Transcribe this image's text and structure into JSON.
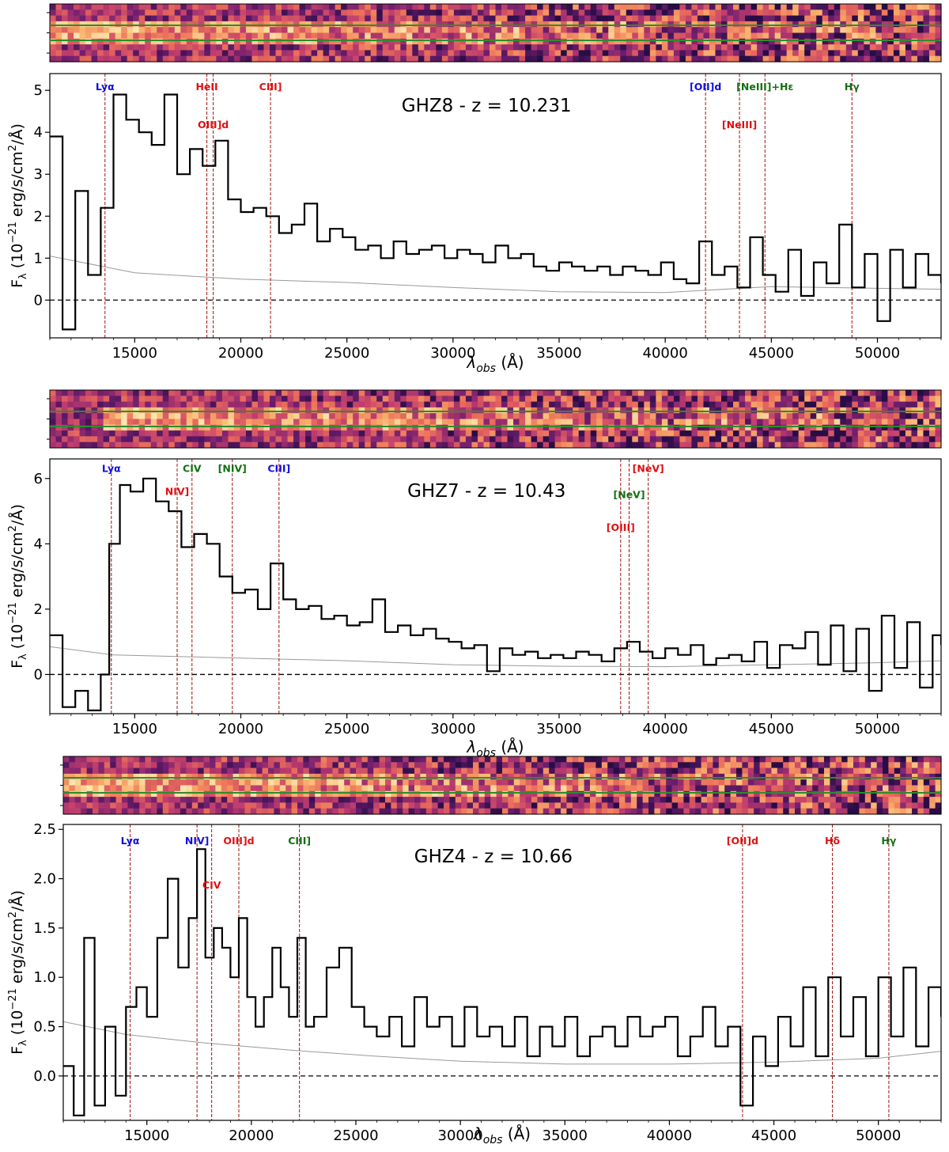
{
  "chart_data": [
    {
      "type": "line",
      "title": "GHZ8 - z = 10.231",
      "xlabel_symbol": "λ",
      "xlabel_sub": "obs",
      "xlabel_unit": " (Å)",
      "ylabel_prefix": "F",
      "ylabel_sub": "λ",
      "ylabel_mid": " (10",
      "ylabel_exp1": "−21",
      "ylabel_mid2": " erg/s/cm",
      "ylabel_exp2": "2",
      "ylabel_end": "/Å)",
      "xlim": [
        11000,
        53000
      ],
      "ylim": [
        -0.9,
        5.4
      ],
      "x_ticks": [
        15000,
        20000,
        25000,
        30000,
        35000,
        40000,
        45000,
        50000
      ],
      "x_tick_labels": [
        "15000",
        "20000",
        "25000",
        "30000",
        "35000",
        "40000",
        "45000",
        "50000"
      ],
      "y_ticks": [
        0,
        1,
        2,
        3,
        4,
        5
      ],
      "y_tick_labels": [
        "0",
        "1",
        "2",
        "3",
        "4",
        "5"
      ],
      "zero_line": 0,
      "flux": {
        "x": [
          11000,
          11600,
          12200,
          12800,
          13400,
          14000,
          14600,
          15200,
          15800,
          16400,
          17000,
          17600,
          18200,
          18800,
          19400,
          20000,
          20600,
          21200,
          21800,
          22400,
          23000,
          23600,
          24200,
          24800,
          25400,
          26000,
          26600,
          27200,
          27800,
          28400,
          29000,
          29600,
          30200,
          30800,
          31400,
          32000,
          32600,
          33200,
          33800,
          34400,
          35000,
          35600,
          36200,
          36800,
          37400,
          38000,
          38600,
          39200,
          39800,
          40400,
          41000,
          41600,
          42200,
          42800,
          43400,
          44000,
          44600,
          45200,
          45800,
          46400,
          47000,
          47600,
          48200,
          48800,
          49400,
          50000,
          50600,
          51200,
          51800,
          52400,
          53000
        ],
        "y": [
          3.9,
          -0.7,
          2.6,
          0.6,
          2.2,
          4.9,
          4.3,
          4.0,
          3.7,
          4.9,
          3.0,
          3.6,
          3.2,
          3.8,
          2.4,
          2.1,
          2.2,
          2.0,
          1.6,
          1.8,
          2.3,
          1.4,
          1.7,
          1.5,
          1.2,
          1.3,
          1.0,
          1.4,
          1.1,
          1.2,
          1.3,
          1.0,
          1.2,
          1.1,
          0.9,
          1.3,
          1.0,
          1.1,
          0.8,
          0.7,
          0.9,
          0.8,
          0.7,
          0.8,
          0.6,
          0.8,
          0.7,
          0.6,
          0.9,
          0.5,
          0.4,
          1.4,
          0.6,
          0.8,
          0.3,
          1.5,
          0.6,
          0.2,
          1.2,
          0.1,
          0.9,
          0.4,
          1.8,
          0.3,
          1.1,
          -0.5,
          1.2,
          0.3,
          1.1,
          0.6,
          0.4
        ]
      },
      "error": {
        "x": [
          11000,
          15000,
          20000,
          25000,
          30000,
          35000,
          40000,
          45000,
          50000,
          53000
        ],
        "y": [
          1.05,
          0.65,
          0.5,
          0.42,
          0.3,
          0.2,
          0.18,
          0.32,
          0.28,
          0.26
        ]
      },
      "lines": [
        {
          "label": "Lyα",
          "x": 13600,
          "color": "#1010e0",
          "label_y": 5.0
        },
        {
          "label": "HeII",
          "x": 18400,
          "color": "#e01010",
          "label_y": 5.0
        },
        {
          "label": "OIII]d",
          "x": 18700,
          "color": "#e01010",
          "label_y": 4.1
        },
        {
          "label": "CIII]",
          "x": 21400,
          "color": "#e01010",
          "label_y": 5.0
        },
        {
          "label": "[OII]d",
          "x": 41900,
          "color": "#1010e0",
          "label_y": 5.0
        },
        {
          "label": "[NeIII]",
          "x": 43500,
          "color": "#e01010",
          "label_y": 4.1
        },
        {
          "label": "[NeIII]+Hε",
          "x": 44700,
          "color": "#127012",
          "label_y": 5.0
        },
        {
          "label": "Hγ",
          "x": 48800,
          "color": "#127012",
          "label_y": 5.0
        }
      ]
    },
    {
      "type": "line",
      "title": "GHZ7 - z = 10.43",
      "xlabel_symbol": "λ",
      "xlabel_sub": "obs",
      "xlabel_unit": " (Å)",
      "ylabel_prefix": "F",
      "ylabel_sub": "λ",
      "ylabel_mid": " (10",
      "ylabel_exp1": "−21",
      "ylabel_mid2": " erg/s/cm",
      "ylabel_exp2": "2",
      "ylabel_end": "/Å)",
      "xlim": [
        11000,
        53000
      ],
      "ylim": [
        -1.2,
        6.6
      ],
      "x_ticks": [
        15000,
        20000,
        25000,
        30000,
        35000,
        40000,
        45000,
        50000
      ],
      "x_tick_labels": [
        "15000",
        "20000",
        "25000",
        "30000",
        "35000",
        "40000",
        "45000",
        "50000"
      ],
      "y_ticks": [
        0,
        2,
        4,
        6
      ],
      "y_tick_labels": [
        "0",
        "2",
        "4",
        "6"
      ],
      "zero_line": 0,
      "flux": {
        "x": [
          11000,
          11600,
          12200,
          12800,
          13400,
          13800,
          14300,
          14800,
          15400,
          16000,
          16600,
          17200,
          17800,
          18400,
          19000,
          19600,
          20200,
          20800,
          21400,
          22000,
          22600,
          23200,
          23800,
          24400,
          25000,
          25600,
          26200,
          26800,
          27400,
          28000,
          28600,
          29200,
          29800,
          30400,
          31000,
          31600,
          32200,
          32800,
          33400,
          34000,
          34600,
          35200,
          35800,
          36400,
          37000,
          37600,
          38200,
          38800,
          39400,
          40000,
          40600,
          41200,
          41800,
          42400,
          43000,
          43600,
          44200,
          44800,
          45400,
          46000,
          46600,
          47200,
          47800,
          48400,
          49000,
          49600,
          50200,
          50800,
          51400,
          52000,
          52600,
          53000
        ],
        "y": [
          1.2,
          -1.0,
          -0.5,
          -1.1,
          0.0,
          4.0,
          5.8,
          5.6,
          6.0,
          5.3,
          5.0,
          3.9,
          4.3,
          4.0,
          3.0,
          2.5,
          2.6,
          2.0,
          3.4,
          2.3,
          2.0,
          2.1,
          1.7,
          1.8,
          1.5,
          1.6,
          2.3,
          1.3,
          1.5,
          1.2,
          1.4,
          1.1,
          1.0,
          0.8,
          0.9,
          0.1,
          0.8,
          0.6,
          0.7,
          0.5,
          0.6,
          0.5,
          0.7,
          0.6,
          0.4,
          0.8,
          1.0,
          0.7,
          0.5,
          0.8,
          0.6,
          0.9,
          0.3,
          0.5,
          0.6,
          0.4,
          1.0,
          0.2,
          0.9,
          0.8,
          1.3,
          0.3,
          1.5,
          0.1,
          1.4,
          -0.5,
          1.8,
          0.2,
          1.6,
          -0.4,
          1.2,
          0.9
        ]
      },
      "error": {
        "x": [
          11000,
          14000,
          20000,
          25000,
          30000,
          35000,
          40000,
          45000,
          50000,
          53000
        ],
        "y": [
          0.85,
          0.6,
          0.5,
          0.42,
          0.3,
          0.25,
          0.24,
          0.3,
          0.36,
          0.42
        ]
      },
      "lines": [
        {
          "label": "Lyα",
          "x": 13900,
          "color": "#1010e0",
          "label_y": 6.2
        },
        {
          "label": "NIV]",
          "x": 17000,
          "color": "#e01010",
          "label_y": 5.5
        },
        {
          "label": "CIV",
          "x": 17700,
          "color": "#127012",
          "label_y": 6.2
        },
        {
          "label": "[NIV]",
          "x": 19600,
          "color": "#127012",
          "label_y": 6.2
        },
        {
          "label": "CIII]",
          "x": 21800,
          "color": "#1010e0",
          "label_y": 6.2
        },
        {
          "label": "[OIII]",
          "x": 37900,
          "color": "#e01010",
          "label_y": 4.4
        },
        {
          "label": "[NeV]",
          "x": 38300,
          "color": "#127012",
          "label_y": 5.4
        },
        {
          "label": "[NeV]",
          "x": 39200,
          "color": "#e01010",
          "label_y": 6.2
        }
      ]
    },
    {
      "type": "line",
      "title": "GHZ4 - z = 10.66",
      "xlabel_symbol": "λ",
      "xlabel_sub": "obs",
      "xlabel_unit": " (Å)",
      "ylabel_prefix": "F",
      "ylabel_sub": "λ",
      "ylabel_mid": " (10",
      "ylabel_exp1": "−21",
      "ylabel_mid2": " erg/s/cm",
      "ylabel_exp2": "2",
      "ylabel_end": "/Å)",
      "xlim": [
        11000,
        53000
      ],
      "ylim": [
        -0.45,
        2.55
      ],
      "x_ticks": [
        15000,
        20000,
        25000,
        30000,
        35000,
        40000,
        45000,
        50000
      ],
      "x_tick_labels": [
        "15000",
        "20000",
        "25000",
        "30000",
        "35000",
        "40000",
        "45000",
        "50000"
      ],
      "y_ticks": [
        0.0,
        0.5,
        1.0,
        1.5,
        2.0,
        2.5
      ],
      "y_tick_labels": [
        "0.0",
        "0.5",
        "1.0",
        "1.5",
        "2.0",
        "2.5"
      ],
      "zero_line": 0,
      "flux": {
        "x": [
          11000,
          11500,
          12000,
          12500,
          13000,
          13500,
          14000,
          14500,
          15000,
          15500,
          16000,
          16500,
          17000,
          17400,
          17800,
          18200,
          18600,
          19000,
          19400,
          19800,
          20200,
          20600,
          21000,
          21400,
          21800,
          22200,
          22600,
          23000,
          23600,
          24200,
          24800,
          25400,
          26000,
          26600,
          27200,
          27800,
          28400,
          29000,
          29600,
          30200,
          30800,
          31400,
          32000,
          32600,
          33200,
          33800,
          34400,
          35000,
          35600,
          36200,
          36800,
          37400,
          38000,
          38600,
          39200,
          39800,
          40400,
          41000,
          41600,
          42200,
          42800,
          43400,
          44000,
          44600,
          45200,
          45800,
          46400,
          47000,
          47600,
          48200,
          48800,
          49400,
          50000,
          50600,
          51200,
          51800,
          52400,
          53000
        ],
        "y": [
          0.1,
          -0.4,
          1.4,
          -0.3,
          0.5,
          -0.2,
          0.7,
          0.9,
          0.6,
          1.4,
          2.0,
          1.1,
          1.6,
          2.3,
          1.2,
          1.5,
          1.3,
          1.0,
          1.6,
          0.8,
          0.5,
          0.8,
          1.3,
          0.9,
          0.6,
          1.4,
          0.5,
          0.6,
          1.1,
          1.3,
          0.7,
          0.5,
          0.4,
          0.6,
          0.3,
          0.8,
          0.5,
          0.6,
          0.3,
          0.7,
          0.4,
          0.5,
          0.3,
          0.6,
          0.2,
          0.5,
          0.3,
          0.6,
          0.2,
          0.4,
          0.5,
          0.3,
          0.6,
          0.4,
          0.5,
          0.6,
          0.2,
          0.4,
          0.7,
          0.3,
          0.5,
          -0.3,
          0.4,
          0.1,
          0.6,
          0.3,
          0.9,
          0.2,
          1.0,
          0.4,
          0.8,
          0.2,
          1.0,
          0.4,
          1.1,
          0.3,
          0.9,
          0.6
        ]
      },
      "error": {
        "x": [
          11000,
          14000,
          18000,
          22000,
          26000,
          30000,
          35000,
          40000,
          45000,
          50000,
          53000
        ],
        "y": [
          0.55,
          0.42,
          0.33,
          0.26,
          0.2,
          0.15,
          0.12,
          0.12,
          0.14,
          0.18,
          0.25
        ]
      },
      "lines": [
        {
          "label": "Lyα",
          "x": 14200,
          "color": "#1010e0",
          "label_y": 2.35
        },
        {
          "label": "NIV]",
          "x": 17400,
          "color": "#1010e0",
          "label_y": 2.35
        },
        {
          "label": "CIV",
          "x": 18100,
          "color": "#e01010",
          "label_y": 1.9
        },
        {
          "label": "OIII]d",
          "x": 19400,
          "color": "#e01010",
          "label_y": 2.35
        },
        {
          "label": "CIII]",
          "x": 22300,
          "color": "#127012",
          "label_y": 2.35
        },
        {
          "label": "[OII]d",
          "x": 43500,
          "color": "#e01010",
          "label_y": 2.35
        },
        {
          "label": "Hδ",
          "x": 47800,
          "color": "#e01010",
          "label_y": 2.35
        },
        {
          "label": "Hγ",
          "x": 50500,
          "color": "#127012",
          "label_y": 2.35
        }
      ]
    }
  ]
}
